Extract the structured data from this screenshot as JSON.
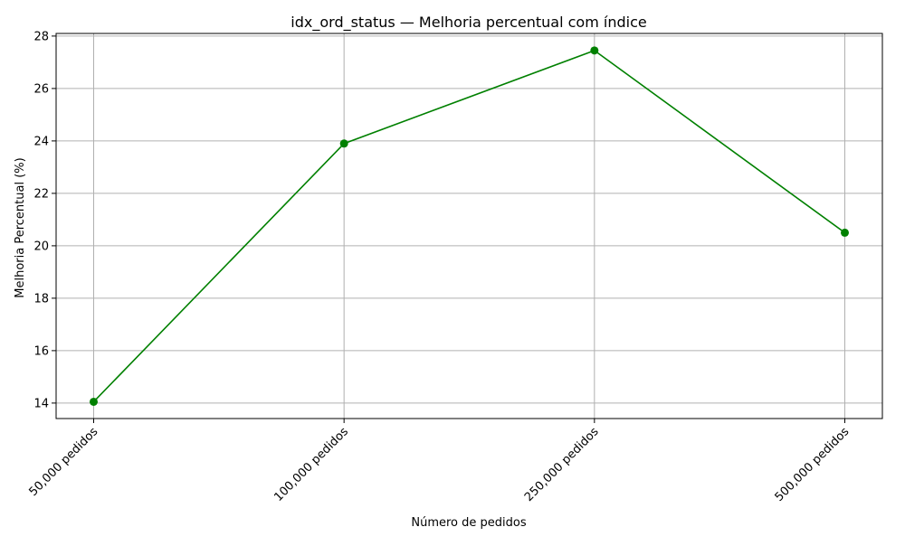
{
  "chart_data": {
    "type": "line",
    "title": "idx_ord_status — Melhoria percentual com índice",
    "xlabel": "Número de pedidos",
    "ylabel": "Melhoria Percentual (%)",
    "categories": [
      "50,000 pedidos",
      "100,000 pedidos",
      "250,000 pedidos",
      "500,000 pedidos"
    ],
    "series": [
      {
        "values": [
          14.05,
          23.9,
          27.45,
          20.5
        ],
        "color": "#008000",
        "marker": "circle"
      }
    ],
    "ylim": [
      13.41,
      28.1
    ],
    "yticks": [
      14,
      16,
      18,
      20,
      22,
      24,
      26,
      28
    ],
    "grid": true,
    "legend": "none"
  }
}
